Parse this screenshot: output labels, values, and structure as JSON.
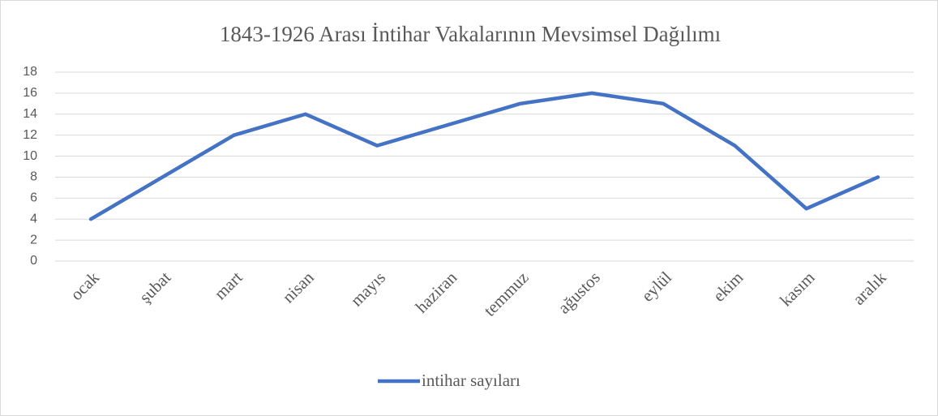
{
  "chart_data": {
    "type": "line",
    "title": "1843-1926 Arası İntihar Vakalarının Mevsimsel Dağılımı",
    "categories": [
      "ocak",
      "şubat",
      "mart",
      "nisan",
      "mayıs",
      "haziran",
      "temmuz",
      "ağustos",
      "eylül",
      "ekim",
      "kasım",
      "aralık"
    ],
    "series": [
      {
        "name": "intihar sayıları",
        "color": "#4472c4",
        "values": [
          4,
          8,
          12,
          14,
          11,
          13,
          15,
          16,
          15,
          11,
          5,
          8
        ]
      }
    ],
    "ylim": [
      0,
      18
    ],
    "yticks": [
      0,
      2,
      4,
      6,
      8,
      10,
      12,
      14,
      16,
      18
    ],
    "grid": true,
    "legend": "bottom"
  }
}
